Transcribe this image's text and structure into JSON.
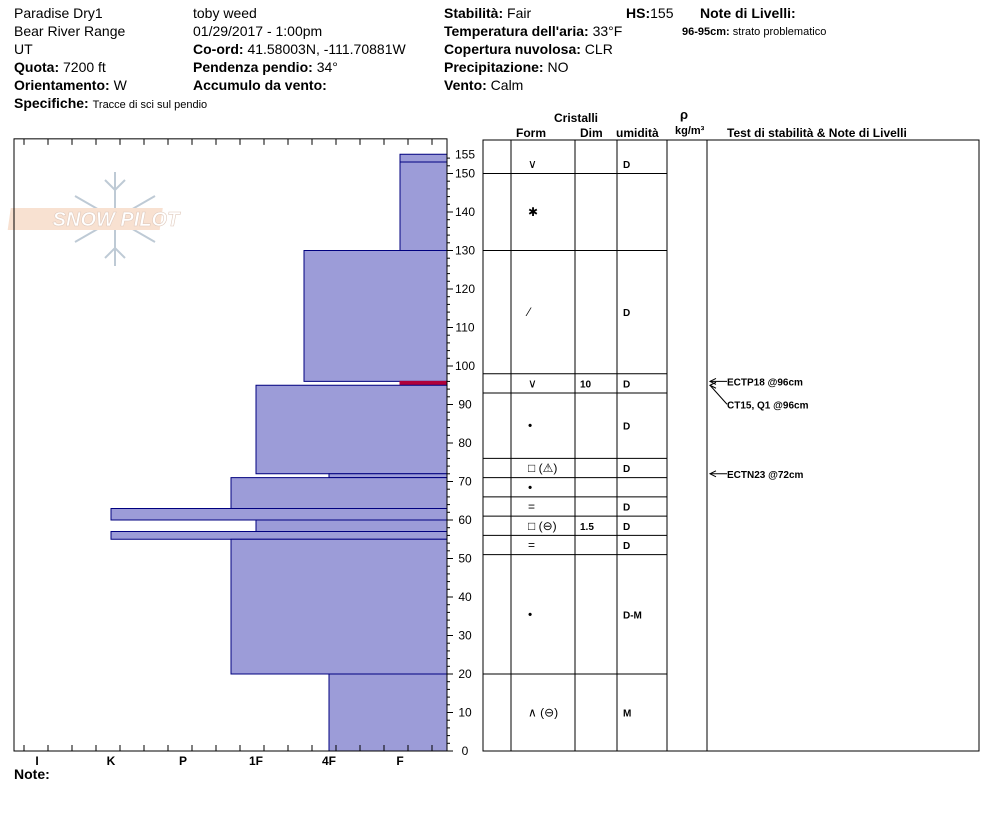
{
  "header": {
    "site": "Paradise Dry1",
    "range": "Bear River Range",
    "state": "UT",
    "elevation_label": "Quota:",
    "elevation_value": "7200 ft",
    "aspect_label": "Orientamento:",
    "aspect_value": "W",
    "specifics_label": "Specifiche:",
    "specifics_value": "Tracce di sci sul pendio",
    "observer": "toby weed",
    "datetime": "01/29/2017 - 1:00pm",
    "coord_label": "Co-ord:",
    "coord_value": "41.58003N, -111.70881W",
    "slope_label": "Pendenza pendio:",
    "slope_value": "34°",
    "wind_loading_label": "Accumulo da vento:",
    "wind_loading_value": "",
    "stability_label": "Stabilità:",
    "stability_value": "Fair",
    "hs_label": "HS:",
    "hs_value": "155",
    "air_temp_label": "Temperatura dell'aria:",
    "air_temp_value": "33°F",
    "sky_label": "Copertura nuvolosa:",
    "sky_value": "CLR",
    "precip_label": "Precipitazione:",
    "precip_value": "NO",
    "wind_label": "Vento:",
    "wind_value": "Calm",
    "layer_notes_label": "Note di Livelli:",
    "layer_note_range": "96-95cm:",
    "layer_note_text": "strato problematico"
  },
  "table_headers": {
    "crystals": "Cristalli",
    "form": "Form",
    "size": "Dim",
    "moisture": "umidità",
    "density_symbol": "ρ",
    "density_unit": "kg/m³",
    "tests": "Test di stabilità & Note di Livelli"
  },
  "footer": {
    "notes_label": "Note:"
  },
  "logo_text": "SNOW PILOT",
  "colors": {
    "profile_fill": "#9c9cd8",
    "profile_stroke": "#00007f",
    "weak_layer": "#b0003a",
    "axis": "#000000"
  },
  "chart_data": {
    "type": "hardness_profile",
    "x_ticks": [
      "I",
      "K",
      "P",
      "1F",
      "4F",
      "F"
    ],
    "y_ticks": [
      0,
      10,
      20,
      30,
      40,
      50,
      60,
      70,
      80,
      90,
      100,
      110,
      120,
      130,
      140,
      150,
      155
    ],
    "ylim": [
      0,
      155
    ],
    "layers": [
      {
        "bottom": 153,
        "top": 155,
        "hard_bottom": "F",
        "hard_top": "F"
      },
      {
        "bottom": 130,
        "top": 153,
        "hard_bottom": "F+",
        "hard_top": "F+"
      },
      {
        "bottom": 96,
        "top": 130,
        "hard_bottom": "1F+",
        "hard_top": "1F+"
      },
      {
        "bottom": 95,
        "top": 96,
        "hard_bottom": "F",
        "hard_top": "F",
        "weak": true
      },
      {
        "bottom": 72,
        "top": 95,
        "hard_bottom": "1F",
        "hard_top": "1F"
      },
      {
        "bottom": 71,
        "top": 72,
        "hard_bottom": "4F",
        "hard_top": "4F"
      },
      {
        "bottom": 63,
        "top": 71,
        "hard_bottom": "1F-",
        "hard_top": "1F-"
      },
      {
        "bottom": 60,
        "top": 63,
        "hard_bottom": "K",
        "hard_top": "K"
      },
      {
        "bottom": 57,
        "top": 60,
        "hard_bottom": "1F",
        "hard_top": "1F"
      },
      {
        "bottom": 55,
        "top": 57,
        "hard_bottom": "K",
        "hard_top": "K"
      },
      {
        "bottom": 20,
        "top": 55,
        "hard_bottom": "1F-",
        "hard_top": "1F-"
      },
      {
        "bottom": 0,
        "top": 20,
        "hard_bottom": "4F",
        "hard_top": "4F"
      }
    ],
    "table_rows": [
      {
        "top": 155,
        "bottom": 150,
        "form": "∨",
        "size": "",
        "moisture": "D"
      },
      {
        "top": 150,
        "bottom": 130,
        "form": "✱",
        "size": "",
        "moisture": ""
      },
      {
        "top": 130,
        "bottom": 98,
        "form": "⁄",
        "size": "",
        "moisture": "D"
      },
      {
        "top": 98,
        "bottom": 93,
        "form": "∨",
        "size": "10",
        "moisture": "D"
      },
      {
        "top": 93,
        "bottom": 76,
        "form": "•",
        "size": "",
        "moisture": "D"
      },
      {
        "top": 76,
        "bottom": 71,
        "form": "□ (⚠)",
        "size": "",
        "moisture": "D"
      },
      {
        "top": 71,
        "bottom": 66,
        "form": "•",
        "size": "",
        "moisture": ""
      },
      {
        "top": 66,
        "bottom": 61,
        "form": "=",
        "size": "",
        "moisture": "D"
      },
      {
        "top": 61,
        "bottom": 56,
        "form": "□ (⊖)",
        "size": "1.5",
        "moisture": "D"
      },
      {
        "top": 56,
        "bottom": 51,
        "form": "=",
        "size": "",
        "moisture": "D"
      },
      {
        "top": 51,
        "bottom": 20,
        "form": "•",
        "size": "",
        "moisture": "D-M"
      },
      {
        "top": 20,
        "bottom": 0,
        "form": "∧ (⊖)",
        "size": "",
        "moisture": "M"
      }
    ],
    "test_notes": [
      {
        "depth": 96,
        "text": "ECTP18 @96cm"
      },
      {
        "depth": 95,
        "text": "CT15, Q1 @96cm"
      },
      {
        "depth": 72,
        "text": "ECTN23 @72cm"
      }
    ]
  }
}
